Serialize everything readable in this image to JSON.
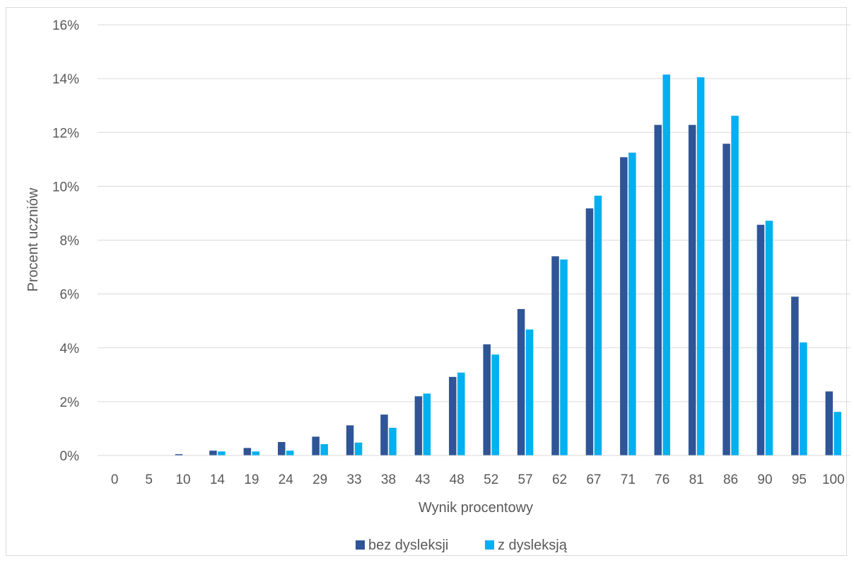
{
  "chart_data": {
    "type": "bar",
    "title": "",
    "xlabel": "Wynik procentowy",
    "ylabel": "Procent uczniów",
    "categories": [
      "0",
      "5",
      "10",
      "14",
      "19",
      "24",
      "29",
      "33",
      "38",
      "43",
      "48",
      "52",
      "57",
      "62",
      "67",
      "71",
      "76",
      "81",
      "86",
      "90",
      "95",
      "100"
    ],
    "ylim": [
      0,
      16
    ],
    "yticks": [
      0,
      2,
      4,
      6,
      8,
      10,
      12,
      14,
      16
    ],
    "ytick_format": "{v}%",
    "grid": true,
    "legend_position": "bottom",
    "series": [
      {
        "name": "bez dysleksji",
        "color": "#2f5597",
        "values": [
          0,
          0,
          0.05,
          0.18,
          0.28,
          0.5,
          0.7,
          1.12,
          1.52,
          2.2,
          2.92,
          4.13,
          5.44,
          7.4,
          9.18,
          11.08,
          12.28,
          12.28,
          11.58,
          8.57,
          5.9,
          2.38
        ]
      },
      {
        "name": "z dysleksją",
        "color": "#00b0f0",
        "values": [
          0,
          0,
          0,
          0.15,
          0.15,
          0.18,
          0.42,
          0.48,
          1.03,
          2.3,
          3.08,
          3.75,
          4.68,
          7.28,
          9.65,
          11.25,
          14.15,
          14.05,
          12.62,
          8.72,
          4.2,
          1.62
        ]
      }
    ]
  }
}
